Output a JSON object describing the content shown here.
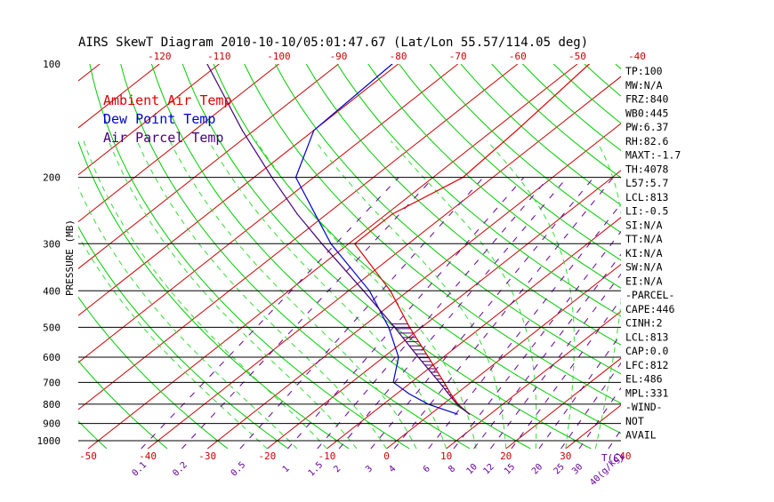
{
  "colors": {
    "isotherm": "#cc0000",
    "dry_adiabat": "#00cc00",
    "moist_adiabat": "#33dd33",
    "mixing_ratio": "#660099",
    "temperature": "#dd0000",
    "dewpoint": "#0000cc",
    "parcel": "#440077",
    "cape_hatch": "#440077",
    "isobar": "#000000",
    "text": "#000000"
  },
  "chart_data": {
    "type": "skewt",
    "title": "AIRS SkewT Diagram 2010-10-10/05:01:47.67 (Lat/Lon 55.57/114.05 deg)",
    "ylabel": "PRESSURE (MB)",
    "xlabel": "T(C)",
    "pressure_levels": [
      100,
      200,
      300,
      400,
      500,
      600,
      700,
      800,
      900,
      1000
    ],
    "pressure_range": [
      1050,
      100
    ],
    "bottom_temp_ticks": [
      -50,
      -40,
      -30,
      -20,
      -10,
      0,
      10,
      20,
      30,
      40
    ],
    "top_temp_ticks": [
      -120,
      -110,
      -100,
      -90,
      -80,
      -70,
      -60,
      -50,
      -40
    ],
    "mixing_ratio_labels": [
      "0.1",
      "0.2",
      "0.5",
      "1",
      "1.5",
      "2",
      "3",
      "4",
      "6",
      "8",
      "10",
      "12",
      "15",
      "20",
      "25",
      "30",
      "40"
    ],
    "mixing_ratio_unit": "g/kg",
    "mixing_ratio_label_values": [
      0.1,
      0.2,
      0.5,
      1,
      1.5,
      2,
      3,
      4,
      6,
      8,
      10,
      12,
      15,
      20,
      25,
      30,
      40
    ],
    "legend": [
      {
        "label": "Ambient Air Temp",
        "color_key": "temperature"
      },
      {
        "label": "Dew Point Temp",
        "color_key": "dewpoint"
      },
      {
        "label": "Air Parcel Temp",
        "color_key": "parcel"
      }
    ],
    "series": [
      {
        "name": "Ambient Air Temp",
        "color_key": "temperature",
        "points": [
          {
            "p": 850,
            "t": 6.5
          },
          {
            "p": 800,
            "t": 2.5
          },
          {
            "p": 750,
            "t": -1.0
          },
          {
            "p": 700,
            "t": -4.5
          },
          {
            "p": 600,
            "t": -12.5
          },
          {
            "p": 500,
            "t": -22.0
          },
          {
            "p": 400,
            "t": -33.0
          },
          {
            "p": 300,
            "t": -49.0
          },
          {
            "p": 250,
            "t": -49.0
          },
          {
            "p": 200,
            "t": -45.0
          },
          {
            "p": 150,
            "t": -46.0
          },
          {
            "p": 100,
            "t": -48.0
          }
        ]
      },
      {
        "name": "Dew Point Temp",
        "color_key": "dewpoint",
        "points": [
          {
            "p": 850,
            "t": 4.5
          },
          {
            "p": 800,
            "t": -2.5
          },
          {
            "p": 750,
            "t": -8.0
          },
          {
            "p": 700,
            "t": -13.0
          },
          {
            "p": 600,
            "t": -17.5
          },
          {
            "p": 500,
            "t": -25.5
          },
          {
            "p": 400,
            "t": -36.5
          },
          {
            "p": 300,
            "t": -53.0
          },
          {
            "p": 250,
            "t": -62.0
          },
          {
            "p": 200,
            "t": -73.0
          },
          {
            "p": 150,
            "t": -80.0
          },
          {
            "p": 100,
            "t": -81.0
          }
        ]
      },
      {
        "name": "Air Parcel Temp",
        "color_key": "parcel",
        "points": [
          {
            "p": 850,
            "t": 6.5
          },
          {
            "p": 800,
            "t": 2.3
          },
          {
            "p": 700,
            "t": -5.3
          },
          {
            "p": 600,
            "t": -14.2
          },
          {
            "p": 500,
            "t": -24.5
          },
          {
            "p": 400,
            "t": -37.5
          },
          {
            "p": 300,
            "t": -54.5
          },
          {
            "p": 250,
            "t": -65.0
          },
          {
            "p": 200,
            "t": -77.0
          },
          {
            "p": 150,
            "t": -92.0
          },
          {
            "p": 100,
            "t": -112.0
          }
        ]
      }
    ],
    "indices": [
      "TP:100",
      "MW:N/A",
      "FRZ:840",
      "WB0:445",
      "PW:6.37",
      "RH:82.6",
      "MAXT:-1.7",
      "TH:4078",
      "L57:5.7",
      "LCL:813",
      "LI:-0.5",
      "SI:N/A",
      "TT:N/A",
      "KI:N/A",
      "SW:N/A",
      "EI:N/A",
      "-PARCEL-",
      "CAPE:446",
      "CINH:2",
      "LCL:813",
      "CAP:0.0",
      "LFC:812",
      "EL:486",
      "MPL:331",
      "-WIND-",
      "NOT",
      "AVAIL"
    ]
  }
}
